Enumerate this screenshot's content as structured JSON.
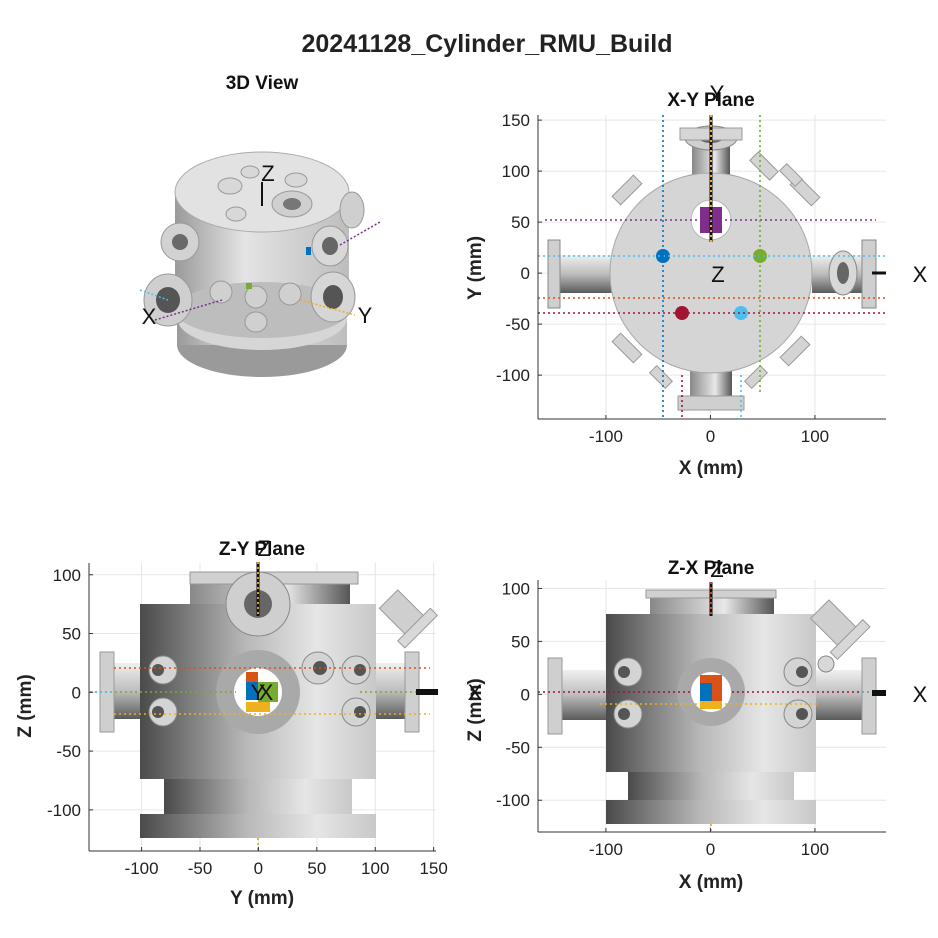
{
  "figure": {
    "title": "20241128_Cylinder_RMU_Build"
  },
  "view3d": {
    "title": "3D View",
    "labels": {
      "x": "X",
      "y": "Y",
      "z": "Z"
    }
  },
  "xy": {
    "title": "X-Y Plane",
    "xlabel": "X (mm)",
    "ylabel": "Y (mm)",
    "xticks": [
      -100,
      0,
      100
    ],
    "yticks": [
      -100,
      -50,
      0,
      50,
      100,
      150
    ],
    "xlim": [
      -165,
      168
    ],
    "ylim": [
      -143,
      155
    ],
    "labels": {
      "x": "X",
      "y": "Y",
      "z": "Z"
    }
  },
  "zy": {
    "title": "Z-Y Plane",
    "xlabel": "Y (mm)",
    "ylabel": "Z (mm)",
    "xticks": [
      -100,
      -50,
      0,
      50,
      100,
      150
    ],
    "yticks": [
      -100,
      -50,
      0,
      50,
      100
    ],
    "xlim": [
      -145,
      152
    ],
    "ylim": [
      -135,
      110
    ],
    "labels": {
      "x": "X",
      "y": "Y",
      "z": "Z"
    }
  },
  "zx": {
    "title": "Z-X Plane",
    "xlabel": "X (mm)",
    "ylabel": "Z (mm)",
    "xticks": [
      -100,
      0,
      100
    ],
    "yticks": [
      -100,
      -50,
      0,
      50,
      100
    ],
    "xlim": [
      -165,
      168
    ],
    "ylim": [
      -130,
      108
    ],
    "labels": {
      "x": "X",
      "z": "Z"
    }
  },
  "colors": {
    "purple": "#7e2f8e",
    "blue": "#0072bd",
    "green": "#77ac30",
    "red": "#a2142f",
    "orange": "#d95319",
    "yellow": "#edb120",
    "cyan": "#4dbeee"
  }
}
